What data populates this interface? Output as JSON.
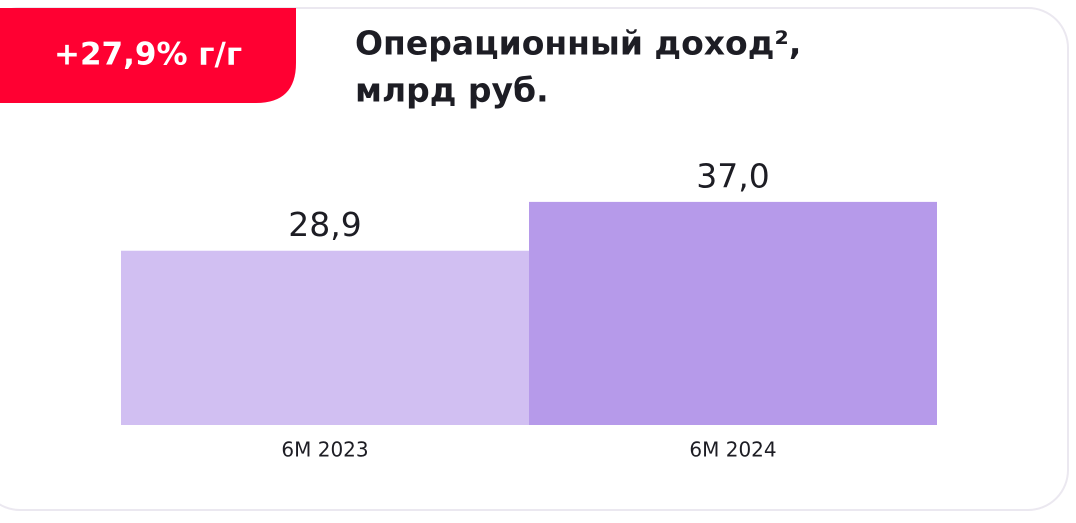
{
  "chart_data": {
    "type": "bar",
    "badge": "+27,9% г/г",
    "title": [
      "Операционный доход²,",
      "млрд руб."
    ],
    "categories": [
      "6М 2023",
      "6М 2024"
    ],
    "values": [
      28.9,
      37.0
    ],
    "value_labels": [
      "28,9",
      "37,0"
    ],
    "colors": [
      "#d1bff2",
      "#b69aea"
    ]
  }
}
